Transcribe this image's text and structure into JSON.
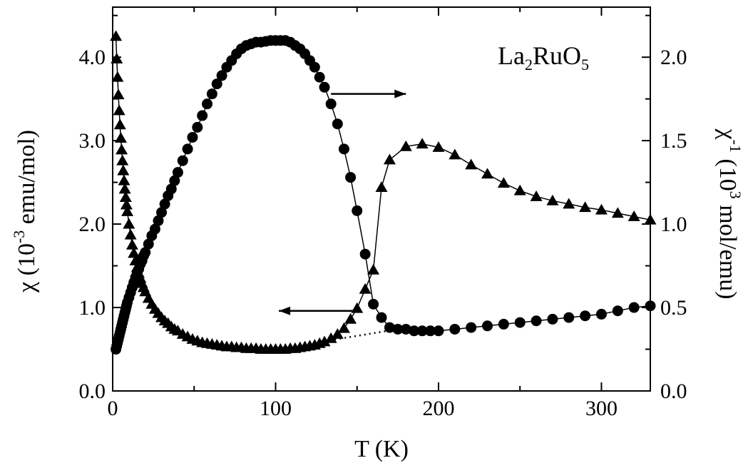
{
  "chart_data": {
    "type": "scatter",
    "title": "",
    "annotation": {
      "formula": "La",
      "formula_sub1": "2",
      "formula_mid": "RuO",
      "formula_sub2": "5"
    },
    "xlabel": "T (K)",
    "ylabel_left": {
      "pre": "χ (10",
      "sup": "-3",
      "post": " emu/mol)"
    },
    "ylabel_right": {
      "pre": "χ",
      "sup1": "-1",
      "mid": " (10",
      "sup2": "3",
      "post": " mol/emu)"
    },
    "xlim": [
      0,
      330
    ],
    "ylim_left": [
      0,
      4.6
    ],
    "ylim_right": [
      0,
      2.3
    ],
    "x_ticks": [
      "0",
      "100",
      "200",
      "300"
    ],
    "y_left_ticks": [
      "0.0",
      "1.0",
      "2.0",
      "3.0",
      "4.0"
    ],
    "y_right_ticks": [
      "0.0",
      "0.5",
      "1.0",
      "1.5",
      "2.0"
    ],
    "series": [
      {
        "axis": "left",
        "marker": "triangle",
        "x": [
          2,
          2.5,
          3,
          3.5,
          4,
          4.5,
          5,
          5.5,
          6,
          6.5,
          7,
          7.5,
          8,
          8.5,
          9,
          10,
          11,
          12,
          13,
          14,
          15,
          16,
          17,
          18,
          19,
          20,
          22,
          24,
          26,
          28,
          30,
          32,
          34,
          36,
          38,
          40,
          43,
          46,
          49,
          52,
          55,
          58,
          61,
          64,
          67,
          70,
          73,
          76,
          79,
          82,
          85,
          88,
          91,
          94,
          97,
          100,
          103,
          106,
          109,
          112,
          115,
          118,
          121,
          124,
          127,
          130,
          134,
          138,
          142,
          146,
          150,
          155,
          160,
          165,
          170,
          180,
          190,
          200,
          210,
          220,
          230,
          240,
          250,
          260,
          270,
          280,
          290,
          300,
          310,
          320,
          330
        ],
        "values": [
          4.25,
          3.98,
          3.76,
          3.55,
          3.36,
          3.19,
          3.03,
          2.89,
          2.76,
          2.64,
          2.52,
          2.42,
          2.32,
          2.23,
          2.15,
          2.0,
          1.87,
          1.75,
          1.65,
          1.56,
          1.48,
          1.41,
          1.35,
          1.29,
          1.24,
          1.19,
          1.11,
          1.04,
          0.98,
          0.93,
          0.88,
          0.84,
          0.81,
          0.77,
          0.74,
          0.72,
          0.68,
          0.65,
          0.62,
          0.6,
          0.58,
          0.57,
          0.56,
          0.55,
          0.54,
          0.53,
          0.53,
          0.52,
          0.52,
          0.51,
          0.51,
          0.51,
          0.5,
          0.5,
          0.5,
          0.5,
          0.5,
          0.5,
          0.51,
          0.51,
          0.52,
          0.53,
          0.54,
          0.55,
          0.57,
          0.59,
          0.63,
          0.68,
          0.75,
          0.86,
          0.99,
          1.22,
          1.45,
          2.44,
          2.77,
          2.93,
          2.96,
          2.92,
          2.83,
          2.71,
          2.6,
          2.49,
          2.4,
          2.33,
          2.28,
          2.24,
          2.2,
          2.17,
          2.13,
          2.09,
          2.05
        ]
      },
      {
        "axis": "right",
        "marker": "circle",
        "x": [
          2,
          2.5,
          3,
          3.5,
          4,
          4.5,
          5,
          5.5,
          6,
          6.5,
          7,
          7.5,
          8,
          8.5,
          9,
          10,
          11,
          12,
          13,
          14,
          15,
          16,
          17,
          18,
          19,
          20,
          22,
          24,
          26,
          28,
          30,
          32,
          34,
          36,
          38,
          40,
          43,
          46,
          49,
          52,
          55,
          58,
          61,
          64,
          67,
          70,
          73,
          76,
          79,
          82,
          85,
          88,
          91,
          94,
          97,
          100,
          103,
          106,
          109,
          112,
          115,
          118,
          121,
          124,
          127,
          130,
          134,
          138,
          142,
          146,
          150,
          155,
          160,
          165,
          170,
          175,
          180,
          185,
          190,
          195,
          200,
          210,
          220,
          230,
          240,
          250,
          260,
          270,
          280,
          290,
          300,
          310,
          320,
          330
        ],
        "values": [
          0.25,
          0.27,
          0.29,
          0.31,
          0.33,
          0.35,
          0.37,
          0.39,
          0.41,
          0.43,
          0.45,
          0.47,
          0.49,
          0.51,
          0.53,
          0.56,
          0.59,
          0.62,
          0.65,
          0.68,
          0.71,
          0.73,
          0.76,
          0.78,
          0.81,
          0.83,
          0.88,
          0.93,
          0.97,
          1.02,
          1.07,
          1.12,
          1.17,
          1.21,
          1.26,
          1.31,
          1.38,
          1.45,
          1.52,
          1.58,
          1.65,
          1.72,
          1.78,
          1.84,
          1.89,
          1.94,
          1.98,
          2.02,
          2.05,
          2.07,
          2.08,
          2.09,
          2.09,
          2.095,
          2.1,
          2.1,
          2.1,
          2.1,
          2.09,
          2.07,
          2.05,
          2.02,
          1.98,
          1.94,
          1.88,
          1.82,
          1.72,
          1.6,
          1.45,
          1.28,
          1.08,
          0.82,
          0.52,
          0.44,
          0.38,
          0.37,
          0.37,
          0.36,
          0.36,
          0.36,
          0.36,
          0.37,
          0.38,
          0.39,
          0.4,
          0.41,
          0.42,
          0.43,
          0.44,
          0.45,
          0.46,
          0.48,
          0.5,
          0.51
        ]
      }
    ],
    "arrows": [
      {
        "from": [
          134,
          1.78
        ],
        "to": [
          180,
          1.78
        ],
        "axis": "right",
        "direction": "right"
      },
      {
        "from": [
          150,
          0.48
        ],
        "to": [
          102,
          0.48
        ],
        "axis": "right",
        "direction": "left"
      }
    ],
    "dotted_baseline": {
      "x": [
        100,
        175
      ],
      "y": [
        0.5,
        0.74
      ],
      "axis": "left"
    },
    "colors": {
      "ink": "#000000",
      "background": "#ffffff"
    }
  }
}
